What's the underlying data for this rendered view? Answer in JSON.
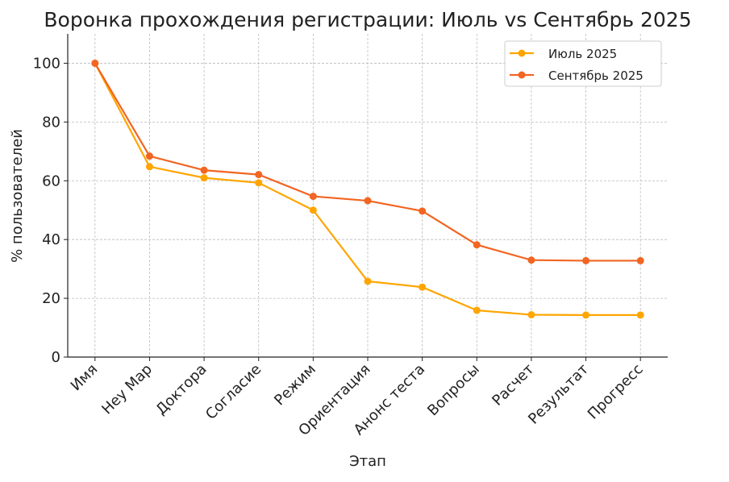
{
  "chart_data": {
    "type": "line",
    "title": "Воронка прохождения регистрации: Июль vs Сентябрь 2025",
    "xlabel": "Этап",
    "ylabel": "% пользователей",
    "categories": [
      "Имя",
      "Hey Map",
      "Доктора",
      "Согласие",
      "Режим",
      "Ориентация",
      "Анонс теста",
      "Вопросы",
      "Расчет",
      "Результат",
      "Прогресс"
    ],
    "ylim": [
      0,
      110
    ],
    "yticks": [
      0,
      20,
      40,
      60,
      80,
      100
    ],
    "grid": true,
    "legend_position": "top-right",
    "series": [
      {
        "name": "Июль 2025",
        "color": "#FFA500",
        "values": [
          100,
          64.8,
          61.0,
          59.3,
          50.0,
          25.8,
          23.8,
          15.9,
          14.4,
          14.3,
          14.3
        ]
      },
      {
        "name": "Сентябрь 2025",
        "color": "#F26522",
        "values": [
          100,
          68.4,
          63.6,
          62.1,
          54.7,
          53.2,
          49.7,
          38.2,
          33.0,
          32.8,
          32.8
        ]
      }
    ]
  }
}
